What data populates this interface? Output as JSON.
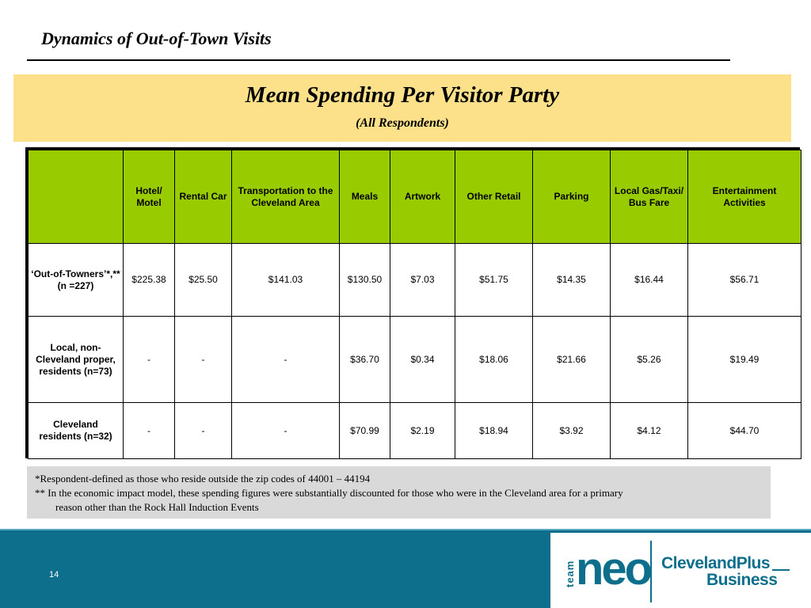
{
  "slide": {
    "title": "Dynamics of Out-of-Town Visits",
    "page_number": "14"
  },
  "banner": {
    "title": "Mean Spending Per Visitor Party",
    "subtitle": "(All Respondents)"
  },
  "table": {
    "headers": [
      "",
      "Hotel/ Motel",
      "Rental Car",
      "Transportation to the Cleveland Area",
      "Meals",
      "Artwork",
      "Other Retail",
      "Parking",
      "Local Gas/Taxi/ Bus Fare",
      "Entertainment Activities"
    ],
    "rows": [
      {
        "label": "‘Out-of-Towners’*,** (n =227)",
        "values": [
          "$225.38",
          "$25.50",
          "$141.03",
          "$130.50",
          "$7.03",
          "$51.75",
          "$14.35",
          "$16.44",
          "$56.71"
        ]
      },
      {
        "label": "Local, non-Cleveland proper, residents (n=73)",
        "values": [
          "-",
          "-",
          "-",
          "$36.70",
          "$0.34",
          "$18.06",
          "$21.66",
          "$5.26",
          "$19.49"
        ]
      },
      {
        "label": "Cleveland residents (n=32)",
        "values": [
          "-",
          "-",
          "-",
          "$70.99",
          "$2.19",
          "$18.94",
          "$3.92",
          "$4.12",
          "$44.70"
        ]
      }
    ]
  },
  "notes": {
    "line1": "*Respondent-defined as those who reside outside the zip codes of 44001 – 44194",
    "line2": "** In the economic impact model, these spending figures were substantially discounted for those who were in the Cleveland area for a primary",
    "line3": "reason other than the Rock Hall Induction Events"
  },
  "logo": {
    "team": "team",
    "neo": "neo",
    "cleveland_plus": "ClevelandPlus",
    "business": "Business"
  },
  "colors": {
    "banner": "#fde08a",
    "header_green": "#99cc00",
    "notes_gray": "#d9d9d9",
    "footer_teal": "#0e6f8c"
  }
}
